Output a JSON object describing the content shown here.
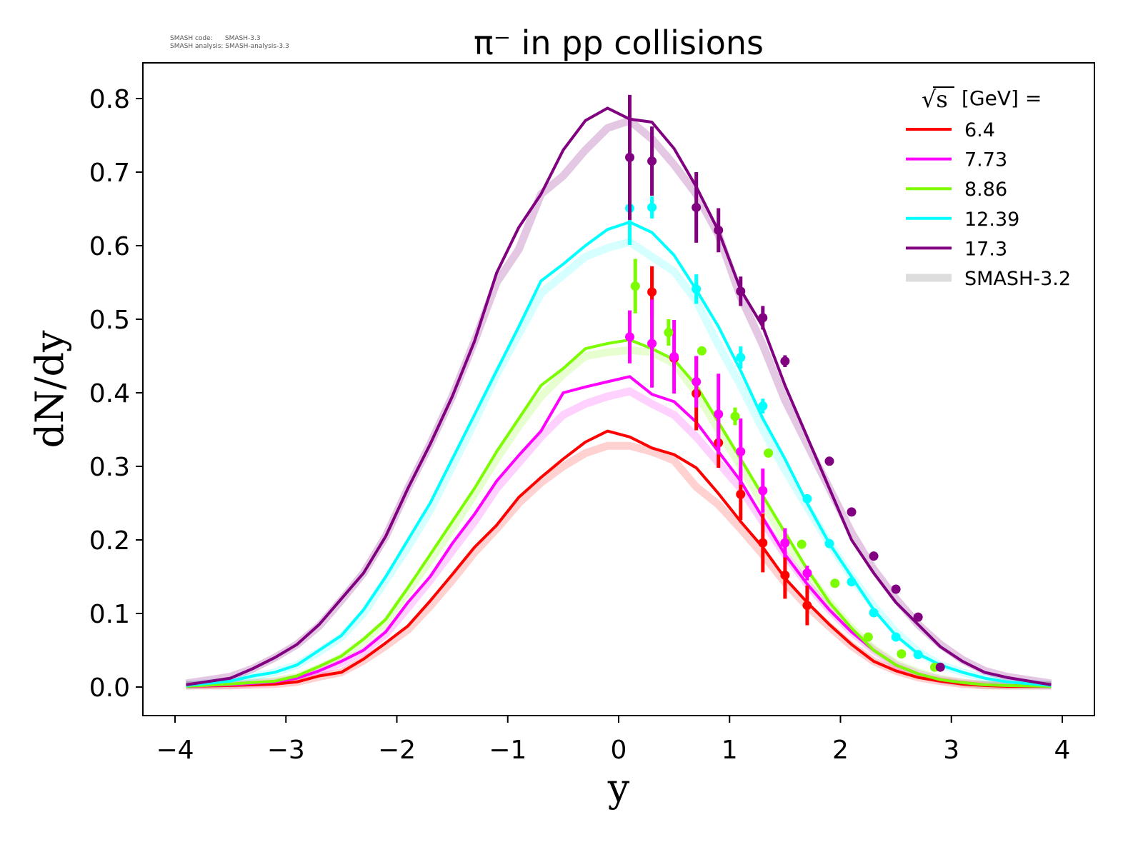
{
  "meta": {
    "line1": "SMASH code:      SMASH-3.3",
    "line2": "SMASH analysis: SMASH-analysis-3.3"
  },
  "chart_data": {
    "type": "line",
    "title": "π⁻ in pp collisions",
    "xlabel": "y",
    "ylabel": "dN/dy",
    "xlim": [
      -4.3,
      4.3
    ],
    "ylim": [
      -0.04,
      0.85
    ],
    "xticks": [
      -4,
      -3,
      -2,
      -1,
      0,
      1,
      2,
      3,
      4
    ],
    "xtick_labels": [
      "−4",
      "−3",
      "−2",
      "−1",
      "0",
      "1",
      "2",
      "3",
      "4"
    ],
    "yticks": [
      0,
      0.1,
      0.2,
      0.3,
      0.4,
      0.5,
      0.6,
      0.7,
      0.8
    ],
    "ytick_labels": [
      "0.0",
      "0.1",
      "0.2",
      "0.3",
      "0.4",
      "0.5",
      "0.6",
      "0.7",
      "0.8"
    ],
    "grid": false,
    "legend": {
      "placement": "top-right",
      "title_prefix": "√s",
      "title": "[GeV] =",
      "reference_label": "SMASH-3.2",
      "reference_color": "#dddddd"
    },
    "x": [
      -3.9,
      -3.5,
      -3.3,
      -3.1,
      -2.9,
      -2.7,
      -2.5,
      -2.3,
      -2.1,
      -1.9,
      -1.7,
      -1.5,
      -1.3,
      -1.1,
      -0.9,
      -0.7,
      -0.5,
      -0.3,
      -0.1,
      0.1,
      0.3,
      0.5,
      0.7,
      0.9,
      1.1,
      1.3,
      1.5,
      1.7,
      1.9,
      2.1,
      2.3,
      2.5,
      2.7,
      2.9,
      3.1,
      3.3,
      3.5,
      3.9
    ],
    "series": [
      {
        "name": "6.4",
        "color": "#ff0000",
        "band_opacity": 0.18,
        "values": [
          0.001,
          0.002,
          0.003,
          0.004,
          0.007,
          0.015,
          0.02,
          0.038,
          0.06,
          0.083,
          0.117,
          0.153,
          0.19,
          0.22,
          0.258,
          0.285,
          0.31,
          0.333,
          0.348,
          0.34,
          0.325,
          0.316,
          0.298,
          0.263,
          0.225,
          0.19,
          0.148,
          0.115,
          0.085,
          0.058,
          0.035,
          0.022,
          0.013,
          0.008,
          0.004,
          0.002,
          0.001,
          0.001
        ],
        "reference": [
          0.002,
          0.002,
          0.003,
          0.004,
          0.007,
          0.014,
          0.02,
          0.036,
          0.056,
          0.078,
          0.11,
          0.145,
          0.183,
          0.215,
          0.25,
          0.278,
          0.3,
          0.318,
          0.328,
          0.328,
          0.32,
          0.308,
          0.272,
          0.248,
          0.215,
          0.18,
          0.142,
          0.11,
          0.082,
          0.056,
          0.035,
          0.022,
          0.013,
          0.008,
          0.004,
          0.002,
          0.002,
          0.002
        ],
        "points": [
          {
            "x": 0.3,
            "y": 0.537,
            "err": 0.035
          },
          {
            "x": 0.5,
            "y": 0.447,
            "err": 0.01
          },
          {
            "x": 0.7,
            "y": 0.399,
            "err": 0.05
          },
          {
            "x": 0.9,
            "y": 0.332,
            "err": 0.034
          },
          {
            "x": 1.1,
            "y": 0.262,
            "err": 0.035
          },
          {
            "x": 1.3,
            "y": 0.196,
            "err": 0.04
          },
          {
            "x": 1.5,
            "y": 0.152,
            "err": 0.032
          },
          {
            "x": 1.7,
            "y": 0.111,
            "err": 0.027
          }
        ]
      },
      {
        "name": "7.73",
        "color": "#ff00ff",
        "band_opacity": 0.18,
        "values": [
          0.001,
          0.003,
          0.005,
          0.007,
          0.012,
          0.022,
          0.035,
          0.05,
          0.075,
          0.115,
          0.15,
          0.195,
          0.235,
          0.28,
          0.315,
          0.348,
          0.4,
          0.408,
          0.415,
          0.422,
          0.398,
          0.388,
          0.36,
          0.32,
          0.28,
          0.23,
          0.18,
          0.14,
          0.105,
          0.075,
          0.05,
          0.03,
          0.018,
          0.01,
          0.006,
          0.003,
          0.002,
          0.001
        ],
        "reference": [
          0.002,
          0.003,
          0.005,
          0.007,
          0.012,
          0.021,
          0.033,
          0.048,
          0.072,
          0.108,
          0.145,
          0.185,
          0.225,
          0.27,
          0.305,
          0.34,
          0.37,
          0.385,
          0.395,
          0.402,
          0.385,
          0.37,
          0.34,
          0.305,
          0.27,
          0.225,
          0.18,
          0.14,
          0.105,
          0.075,
          0.05,
          0.03,
          0.018,
          0.01,
          0.006,
          0.003,
          0.002,
          0.002
        ],
        "points": [
          {
            "x": 0.1,
            "y": 0.476,
            "err": 0.036
          },
          {
            "x": 0.3,
            "y": 0.467,
            "err": 0.06
          },
          {
            "x": 0.5,
            "y": 0.449,
            "err": 0.05
          },
          {
            "x": 0.7,
            "y": 0.415,
            "err": 0.035
          },
          {
            "x": 0.9,
            "y": 0.371,
            "err": 0.055
          },
          {
            "x": 1.1,
            "y": 0.32,
            "err": 0.045
          },
          {
            "x": 1.3,
            "y": 0.267,
            "err": 0.03
          },
          {
            "x": 1.5,
            "y": 0.196,
            "err": 0.02
          },
          {
            "x": 1.7,
            "y": 0.155,
            "err": 0.01
          }
        ]
      },
      {
        "name": "8.86",
        "color": "#7cfc00",
        "band_opacity": 0.18,
        "values": [
          0.001,
          0.004,
          0.006,
          0.008,
          0.015,
          0.028,
          0.042,
          0.065,
          0.092,
          0.135,
          0.18,
          0.225,
          0.27,
          0.32,
          0.365,
          0.41,
          0.433,
          0.46,
          0.467,
          0.472,
          0.46,
          0.445,
          0.41,
          0.36,
          0.31,
          0.26,
          0.21,
          0.16,
          0.115,
          0.08,
          0.05,
          0.03,
          0.018,
          0.01,
          0.006,
          0.003,
          0.002,
          0.001
        ],
        "reference": [
          0.002,
          0.004,
          0.006,
          0.008,
          0.014,
          0.026,
          0.04,
          0.062,
          0.088,
          0.13,
          0.172,
          0.215,
          0.262,
          0.31,
          0.355,
          0.395,
          0.425,
          0.45,
          0.455,
          0.458,
          0.455,
          0.44,
          0.4,
          0.35,
          0.3,
          0.25,
          0.2,
          0.155,
          0.115,
          0.08,
          0.052,
          0.032,
          0.02,
          0.011,
          0.006,
          0.003,
          0.002,
          0.002
        ],
        "points": [
          {
            "x": 0.15,
            "y": 0.545,
            "err": 0.037
          },
          {
            "x": 0.45,
            "y": 0.482,
            "err": 0.018
          },
          {
            "x": 0.75,
            "y": 0.457,
            "err": 0.005
          },
          {
            "x": 1.05,
            "y": 0.368,
            "err": 0.012
          },
          {
            "x": 1.35,
            "y": 0.318,
            "err": 0.004
          },
          {
            "x": 1.65,
            "y": 0.194,
            "err": 0.003
          },
          {
            "x": 1.95,
            "y": 0.141,
            "err": 0.002
          },
          {
            "x": 2.25,
            "y": 0.068,
            "err": 0.002
          },
          {
            "x": 2.55,
            "y": 0.045,
            "err": 0.002
          },
          {
            "x": 2.85,
            "y": 0.027,
            "err": 0.002
          }
        ]
      },
      {
        "name": "12.39",
        "color": "#00ffff",
        "band_opacity": 0.16,
        "values": [
          0.002,
          0.008,
          0.015,
          0.02,
          0.03,
          0.05,
          0.07,
          0.105,
          0.15,
          0.2,
          0.25,
          0.31,
          0.37,
          0.43,
          0.49,
          0.552,
          0.575,
          0.6,
          0.622,
          0.632,
          0.618,
          0.587,
          0.54,
          0.49,
          0.43,
          0.365,
          0.31,
          0.25,
          0.195,
          0.15,
          0.105,
          0.07,
          0.045,
          0.03,
          0.02,
          0.012,
          0.007,
          0.002
        ],
        "reference": [
          0.003,
          0.008,
          0.014,
          0.02,
          0.03,
          0.048,
          0.068,
          0.1,
          0.145,
          0.19,
          0.24,
          0.3,
          0.36,
          0.425,
          0.48,
          0.535,
          0.56,
          0.585,
          0.597,
          0.605,
          0.585,
          0.565,
          0.525,
          0.465,
          0.41,
          0.35,
          0.295,
          0.245,
          0.195,
          0.15,
          0.11,
          0.075,
          0.048,
          0.03,
          0.02,
          0.012,
          0.007,
          0.003
        ],
        "points": [
          {
            "x": 0.1,
            "y": 0.651,
            "err": 0.05
          },
          {
            "x": 0.3,
            "y": 0.652,
            "err": 0.015
          },
          {
            "x": 0.7,
            "y": 0.541,
            "err": 0.02
          },
          {
            "x": 1.1,
            "y": 0.448,
            "err": 0.015
          },
          {
            "x": 1.3,
            "y": 0.382,
            "err": 0.01
          },
          {
            "x": 1.7,
            "y": 0.256,
            "err": 0.003
          },
          {
            "x": 1.9,
            "y": 0.195,
            "err": 0.003
          },
          {
            "x": 2.1,
            "y": 0.143,
            "err": 0.002
          },
          {
            "x": 2.3,
            "y": 0.101,
            "err": 0.002
          },
          {
            "x": 2.5,
            "y": 0.068,
            "err": 0.002
          },
          {
            "x": 2.7,
            "y": 0.044,
            "err": 0.002
          }
        ]
      },
      {
        "name": "17.3",
        "color": "#800080",
        "band_opacity": 0.22,
        "values": [
          0.003,
          0.012,
          0.025,
          0.04,
          0.058,
          0.085,
          0.12,
          0.155,
          0.205,
          0.27,
          0.33,
          0.395,
          0.47,
          0.563,
          0.625,
          0.67,
          0.73,
          0.77,
          0.787,
          0.772,
          0.768,
          0.732,
          0.68,
          0.62,
          0.54,
          0.49,
          0.41,
          0.34,
          0.27,
          0.2,
          0.155,
          0.115,
          0.085,
          0.055,
          0.035,
          0.02,
          0.013,
          0.003
        ],
        "reference": [
          0.005,
          0.014,
          0.025,
          0.04,
          0.058,
          0.083,
          0.118,
          0.155,
          0.205,
          0.27,
          0.33,
          0.395,
          0.47,
          0.55,
          0.595,
          0.67,
          0.695,
          0.73,
          0.76,
          0.77,
          0.745,
          0.71,
          0.67,
          0.615,
          0.53,
          0.465,
          0.39,
          0.33,
          0.27,
          0.21,
          0.16,
          0.12,
          0.085,
          0.058,
          0.037,
          0.022,
          0.014,
          0.005
        ],
        "points": [
          {
            "x": 0.1,
            "y": 0.72,
            "err": 0.085
          },
          {
            "x": 0.3,
            "y": 0.715,
            "err": 0.047
          },
          {
            "x": 0.7,
            "y": 0.652,
            "err": 0.048
          },
          {
            "x": 0.9,
            "y": 0.621,
            "err": 0.03
          },
          {
            "x": 1.1,
            "y": 0.538,
            "err": 0.02
          },
          {
            "x": 1.3,
            "y": 0.502,
            "err": 0.016
          },
          {
            "x": 1.5,
            "y": 0.443,
            "err": 0.008
          },
          {
            "x": 1.9,
            "y": 0.307,
            "err": 0.006
          },
          {
            "x": 2.1,
            "y": 0.238,
            "err": 0.004
          },
          {
            "x": 2.3,
            "y": 0.178,
            "err": 0.003
          },
          {
            "x": 2.5,
            "y": 0.133,
            "err": 0.003
          },
          {
            "x": 2.7,
            "y": 0.095,
            "err": 0.003
          },
          {
            "x": 2.9,
            "y": 0.027,
            "err": 0.003
          }
        ]
      }
    ]
  }
}
